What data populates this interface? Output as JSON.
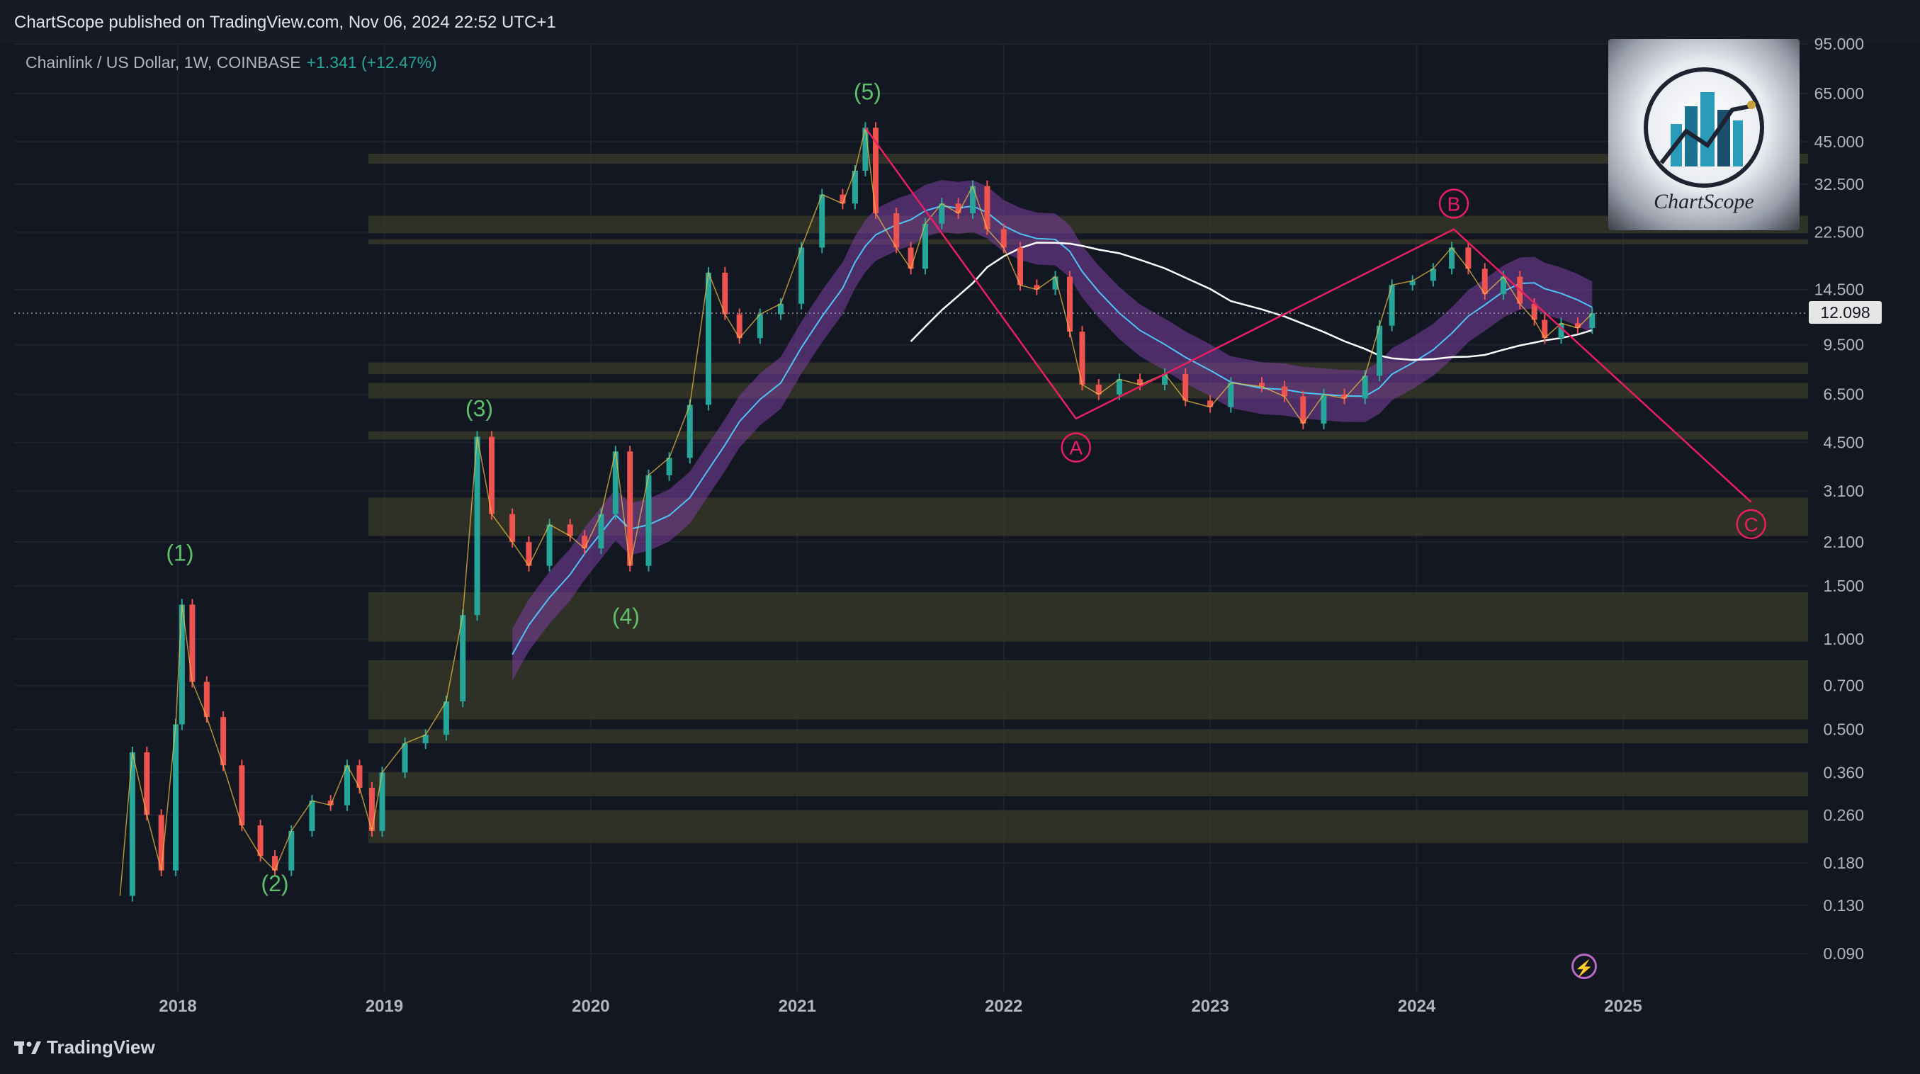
{
  "header": {
    "publisher_line": "ChartScope published on TradingView.com, Nov 06, 2024 22:52 UTC+1"
  },
  "legend": {
    "symbol": "Chainlink / US Dollar, 1W, COINBASE",
    "change": "+1.341 (+12.47%)"
  },
  "footer": {
    "brand": "TradingView"
  },
  "watermark": {
    "name": "ChartScope"
  },
  "last_price": {
    "label": "12.098",
    "value": 12.098
  },
  "colors": {
    "background": "#131722",
    "up": "#26a69a",
    "down": "#ef5350",
    "wave": "#5fbf6b",
    "correction": "#e91e63",
    "ribbon": "#7b3fa0",
    "zone": "#3a3a28"
  },
  "chart_data": {
    "type": "line",
    "title": "",
    "xlabel": "",
    "ylabel": "",
    "log_scale": true,
    "ylim": [
      0.08,
      100
    ],
    "grid": true,
    "x_tick_labels": [
      "2018",
      "2019",
      "2020",
      "2021",
      "2022",
      "2023",
      "2024",
      "2025"
    ],
    "y_tick_labels": [
      "95.000",
      "65.000",
      "45.000",
      "32.500",
      "22.500",
      "14.500",
      "9.500",
      "6.500",
      "4.500",
      "3.100",
      "2.100",
      "1.500",
      "1.000",
      "0.700",
      "0.500",
      "0.360",
      "0.260",
      "0.180",
      "0.130",
      "0.090"
    ],
    "series": [
      {
        "values": [
          {
            "x": 2017.72,
            "y": 0.14
          },
          {
            "x": 2017.78,
            "y": 0.42
          },
          {
            "x": 2017.85,
            "y": 0.26
          },
          {
            "x": 2017.92,
            "y": 0.17
          },
          {
            "x": 2017.99,
            "y": 0.52
          },
          {
            "x": 2018.02,
            "y": 1.3
          },
          {
            "x": 2018.07,
            "y": 0.72
          },
          {
            "x": 2018.14,
            "y": 0.55
          },
          {
            "x": 2018.22,
            "y": 0.38
          },
          {
            "x": 2018.31,
            "y": 0.24
          },
          {
            "x": 2018.4,
            "y": 0.19
          },
          {
            "x": 2018.47,
            "y": 0.17
          },
          {
            "x": 2018.55,
            "y": 0.23
          },
          {
            "x": 2018.65,
            "y": 0.29
          },
          {
            "x": 2018.74,
            "y": 0.28
          },
          {
            "x": 2018.82,
            "y": 0.38
          },
          {
            "x": 2018.88,
            "y": 0.32
          },
          {
            "x": 2018.94,
            "y": 0.23
          },
          {
            "x": 2018.99,
            "y": 0.36
          },
          {
            "x": 2019.1,
            "y": 0.45
          },
          {
            "x": 2019.2,
            "y": 0.48
          },
          {
            "x": 2019.3,
            "y": 0.62
          },
          {
            "x": 2019.38,
            "y": 1.2
          },
          {
            "x": 2019.45,
            "y": 4.7
          },
          {
            "x": 2019.52,
            "y": 2.6
          },
          {
            "x": 2019.62,
            "y": 2.1
          },
          {
            "x": 2019.7,
            "y": 1.75
          },
          {
            "x": 2019.8,
            "y": 2.4
          },
          {
            "x": 2019.9,
            "y": 2.2
          },
          {
            "x": 2019.97,
            "y": 2.0
          },
          {
            "x": 2020.05,
            "y": 2.6
          },
          {
            "x": 2020.12,
            "y": 4.2
          },
          {
            "x": 2020.19,
            "y": 1.75
          },
          {
            "x": 2020.28,
            "y": 3.5
          },
          {
            "x": 2020.38,
            "y": 4.0
          },
          {
            "x": 2020.48,
            "y": 6.0
          },
          {
            "x": 2020.57,
            "y": 16.5
          },
          {
            "x": 2020.65,
            "y": 12.0
          },
          {
            "x": 2020.72,
            "y": 10.0
          },
          {
            "x": 2020.82,
            "y": 12.0
          },
          {
            "x": 2020.92,
            "y": 13.0
          },
          {
            "x": 2021.02,
            "y": 20.0
          },
          {
            "x": 2021.12,
            "y": 30.0
          },
          {
            "x": 2021.22,
            "y": 28.0
          },
          {
            "x": 2021.28,
            "y": 36.0
          },
          {
            "x": 2021.33,
            "y": 50.0
          },
          {
            "x": 2021.38,
            "y": 26.0
          },
          {
            "x": 2021.48,
            "y": 20.0
          },
          {
            "x": 2021.55,
            "y": 17.0
          },
          {
            "x": 2021.62,
            "y": 24.0
          },
          {
            "x": 2021.7,
            "y": 28.0
          },
          {
            "x": 2021.78,
            "y": 26.0
          },
          {
            "x": 2021.85,
            "y": 32.0
          },
          {
            "x": 2021.92,
            "y": 23.0
          },
          {
            "x": 2022.0,
            "y": 20.0
          },
          {
            "x": 2022.08,
            "y": 15.0
          },
          {
            "x": 2022.16,
            "y": 14.5
          },
          {
            "x": 2022.25,
            "y": 16.0
          },
          {
            "x": 2022.32,
            "y": 10.5
          },
          {
            "x": 2022.38,
            "y": 7.0
          },
          {
            "x": 2022.46,
            "y": 6.5
          },
          {
            "x": 2022.56,
            "y": 7.3
          },
          {
            "x": 2022.66,
            "y": 7.0
          },
          {
            "x": 2022.78,
            "y": 7.6
          },
          {
            "x": 2022.88,
            "y": 6.2
          },
          {
            "x": 2023.0,
            "y": 5.9
          },
          {
            "x": 2023.1,
            "y": 7.1
          },
          {
            "x": 2023.25,
            "y": 6.9
          },
          {
            "x": 2023.36,
            "y": 6.4
          },
          {
            "x": 2023.45,
            "y": 5.2
          },
          {
            "x": 2023.55,
            "y": 6.5
          },
          {
            "x": 2023.65,
            "y": 6.3
          },
          {
            "x": 2023.75,
            "y": 7.5
          },
          {
            "x": 2023.82,
            "y": 11.0
          },
          {
            "x": 2023.88,
            "y": 15.0
          },
          {
            "x": 2023.98,
            "y": 15.5
          },
          {
            "x": 2024.08,
            "y": 17.0
          },
          {
            "x": 2024.17,
            "y": 20.0
          },
          {
            "x": 2024.25,
            "y": 17.0
          },
          {
            "x": 2024.33,
            "y": 14.0
          },
          {
            "x": 2024.42,
            "y": 16.0
          },
          {
            "x": 2024.5,
            "y": 13.0
          },
          {
            "x": 2024.57,
            "y": 11.5
          },
          {
            "x": 2024.62,
            "y": 10.0
          },
          {
            "x": 2024.7,
            "y": 11.2
          },
          {
            "x": 2024.78,
            "y": 10.8
          },
          {
            "x": 2024.85,
            "y": 12.1
          }
        ]
      }
    ],
    "zones": [
      {
        "low": 38,
        "high": 41
      },
      {
        "low": 20.5,
        "high": 21.3
      },
      {
        "low": 22.3,
        "high": 25.5
      },
      {
        "low": 7.6,
        "high": 8.3
      },
      {
        "low": 6.3,
        "high": 7.1
      },
      {
        "low": 4.6,
        "high": 4.9
      },
      {
        "low": 2.2,
        "high": 2.95
      },
      {
        "low": 0.98,
        "high": 1.43
      },
      {
        "low": 0.54,
        "high": 0.85
      },
      {
        "low": 0.45,
        "high": 0.5
      },
      {
        "low": 0.3,
        "high": 0.36
      },
      {
        "low": 0.21,
        "high": 0.27
      }
    ],
    "wave_labels": [
      {
        "text": "(1)",
        "x": 2018.01,
        "y": 1.82
      },
      {
        "text": "(2)",
        "x": 2018.47,
        "y": 0.145
      },
      {
        "text": "(3)",
        "x": 2019.46,
        "y": 5.5
      },
      {
        "text": "(4)",
        "x": 2020.17,
        "y": 1.12
      },
      {
        "text": "(5)",
        "x": 2021.34,
        "y": 62
      },
      {
        "text": "A",
        "x": 2022.35,
        "y": 4.1
      },
      {
        "text": "B",
        "x": 2024.18,
        "y": 26.5
      },
      {
        "text": "C",
        "x": 2025.62,
        "y": 2.28
      }
    ],
    "correction_path": [
      {
        "x": 2021.33,
        "y": 50
      },
      {
        "x": 2022.35,
        "y": 5.4
      },
      {
        "x": 2024.18,
        "y": 23
      },
      {
        "x": 2025.62,
        "y": 2.85
      }
    ]
  }
}
